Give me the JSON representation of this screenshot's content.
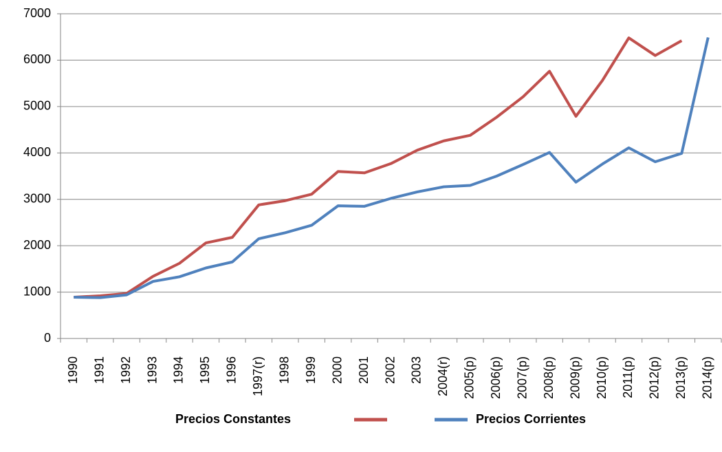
{
  "chart_data": {
    "type": "line",
    "categories": [
      "1990",
      "1991",
      "1992",
      "1993",
      "1994",
      "1995",
      "1996",
      "1997(r)",
      "1998",
      "1999",
      "2000",
      "2001",
      "2002",
      "2003",
      "2004(r)",
      "2005(p)",
      "2006(p)",
      "2007(p)",
      "2008(p)",
      "2009(p)",
      "2010(p)",
      "2011(p)",
      "2012(p)",
      "2013(p)",
      "2014(p)"
    ],
    "series": [
      {
        "name": "Precios Constantes",
        "color": "#c0504d",
        "values": [
          890,
          920,
          970,
          1340,
          1620,
          2060,
          2180,
          2880,
          2970,
          3110,
          3600,
          3570,
          3770,
          4060,
          4260,
          4380,
          4770,
          5210,
          5760,
          4790,
          5560,
          6480,
          6100,
          6420,
          null
        ]
      },
      {
        "name": "Precios Corrientes",
        "color": "#4f81bd",
        "values": [
          890,
          880,
          940,
          1230,
          1330,
          1520,
          1650,
          2150,
          2280,
          2440,
          2860,
          2850,
          3020,
          3160,
          3270,
          3300,
          3500,
          3750,
          4010,
          3370,
          3760,
          4110,
          3810,
          3990,
          6490
        ]
      }
    ],
    "ylim": [
      0,
      7000
    ],
    "yticks": [
      0,
      1000,
      2000,
      3000,
      4000,
      5000,
      6000,
      7000
    ],
    "grid": true
  }
}
